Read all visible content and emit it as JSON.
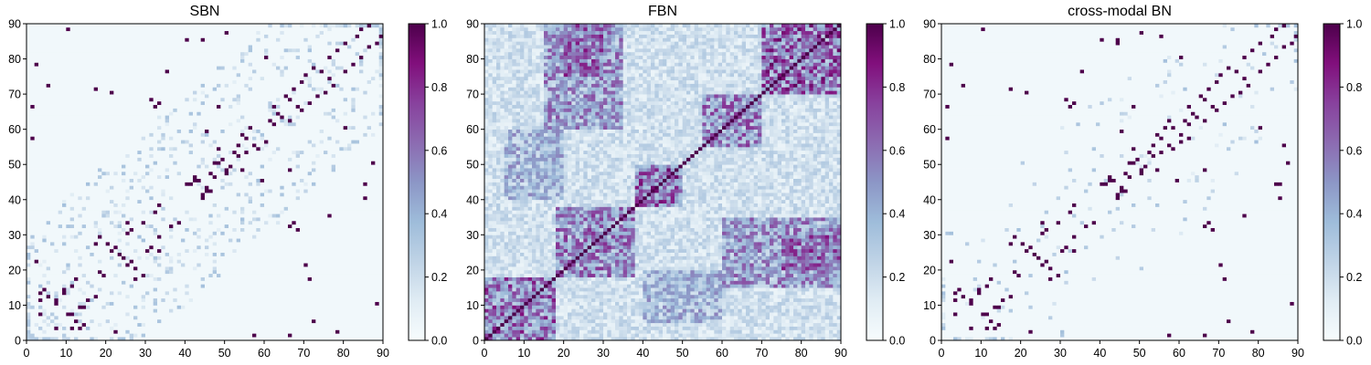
{
  "chart_data": [
    {
      "type": "heatmap",
      "title": "SBN",
      "size": 90,
      "xlim": [
        0,
        90
      ],
      "ylim": [
        0,
        90
      ],
      "xticks": [
        0,
        10,
        20,
        30,
        40,
        50,
        60,
        70,
        80,
        90
      ],
      "yticks": [
        0,
        10,
        20,
        30,
        40,
        50,
        60,
        70,
        80,
        90
      ],
      "colorbar": {
        "min": 0.0,
        "max": 1.0,
        "ticks": [
          "0.0",
          "0.2",
          "0.4",
          "0.6",
          "0.8",
          "1.0"
        ]
      },
      "colormap": "BuPu",
      "strong_edges": [
        [
          57,
          1
        ],
        [
          7,
          10
        ],
        [
          11,
          7
        ],
        [
          5,
          12
        ],
        [
          4,
          14
        ],
        [
          3,
          11
        ],
        [
          9,
          14
        ],
        [
          13,
          3
        ],
        [
          15,
          11
        ],
        [
          12,
          17
        ],
        [
          19,
          18
        ],
        [
          22,
          2
        ],
        [
          24,
          23
        ],
        [
          25,
          21
        ],
        [
          26,
          22
        ],
        [
          27,
          17
        ],
        [
          29,
          18
        ],
        [
          30,
          25
        ],
        [
          31,
          26
        ],
        [
          33,
          29
        ],
        [
          36,
          32
        ],
        [
          38,
          33
        ],
        [
          40,
          44
        ],
        [
          42,
          45
        ],
        [
          44,
          41
        ],
        [
          45,
          43
        ],
        [
          46,
          42
        ],
        [
          47,
          46
        ],
        [
          48,
          50
        ],
        [
          49,
          51
        ],
        [
          50,
          47
        ],
        [
          53,
          52
        ],
        [
          54,
          48
        ],
        [
          55,
          53
        ],
        [
          57,
          55
        ],
        [
          58,
          54
        ],
        [
          60,
          56
        ],
        [
          62,
          61
        ],
        [
          64,
          63
        ],
        [
          66,
          62
        ],
        [
          68,
          66
        ],
        [
          69,
          65
        ],
        [
          71,
          67
        ],
        [
          73,
          69
        ],
        [
          75,
          70
        ],
        [
          76,
          74
        ],
        [
          77,
          72
        ],
        [
          80,
          76
        ],
        [
          82,
          78
        ],
        [
          84,
          80
        ],
        [
          86,
          83
        ],
        [
          88,
          84
        ],
        [
          89,
          86
        ],
        [
          1,
          66
        ],
        [
          5,
          72
        ],
        [
          2,
          78
        ],
        [
          27,
          20
        ],
        [
          33,
          25
        ],
        [
          17,
          71
        ],
        [
          21,
          70
        ],
        [
          48,
          66
        ],
        [
          45,
          59
        ],
        [
          66,
          32
        ],
        [
          80,
          60
        ],
        [
          87,
          50
        ],
        [
          85,
          40
        ],
        [
          3,
          7
        ],
        [
          9,
          13
        ],
        [
          67,
          33
        ],
        [
          68,
          31
        ],
        [
          35,
          76
        ],
        [
          10,
          88
        ],
        [
          44,
          85
        ]
      ],
      "weak_edges_per_row": 4,
      "base_value": 0.03
    },
    {
      "type": "heatmap",
      "title": "FBN",
      "size": 90,
      "xlim": [
        0,
        90
      ],
      "ylim": [
        0,
        90
      ],
      "xticks": [
        0,
        10,
        20,
        30,
        40,
        50,
        60,
        70,
        80,
        90
      ],
      "yticks": [
        0,
        10,
        20,
        30,
        40,
        50,
        60,
        70,
        80,
        90
      ],
      "colorbar": {
        "min": 0.0,
        "max": 1.0,
        "ticks": [
          "0.0",
          "0.2",
          "0.4",
          "0.6",
          "0.8",
          "1.0"
        ]
      },
      "colormap": "BuPu",
      "dense_blocks": [
        [
          0,
          18,
          0,
          18,
          0.55
        ],
        [
          18,
          38,
          18,
          38,
          0.5
        ],
        [
          38,
          50,
          38,
          50,
          0.6
        ],
        [
          55,
          70,
          55,
          70,
          0.5
        ],
        [
          70,
          90,
          70,
          90,
          0.6
        ],
        [
          15,
          35,
          60,
          90,
          0.45
        ],
        [
          60,
          90,
          15,
          35,
          0.45
        ],
        [
          5,
          20,
          40,
          60,
          0.35
        ],
        [
          40,
          60,
          5,
          20,
          0.35
        ],
        [
          75,
          90,
          20,
          30,
          0.55
        ],
        [
          20,
          30,
          75,
          90,
          0.55
        ]
      ],
      "diagonal_value": 1.0,
      "base_value": 0.2
    },
    {
      "type": "heatmap",
      "title": "cross-modal BN",
      "size": 90,
      "xlim": [
        0,
        90
      ],
      "ylim": [
        0,
        90
      ],
      "xticks": [
        0,
        10,
        20,
        30,
        40,
        50,
        60,
        70,
        80,
        90
      ],
      "yticks": [
        0,
        10,
        20,
        30,
        40,
        50,
        60,
        70,
        80,
        90
      ],
      "colorbar": {
        "min": 0.0,
        "max": 1.0,
        "ticks": [
          "0.0",
          "0.2",
          "0.4",
          "0.6",
          "0.8",
          "1.0"
        ]
      },
      "colormap": "BuPu",
      "strong_edges": [
        [
          57,
          1
        ],
        [
          7,
          10
        ],
        [
          11,
          7
        ],
        [
          5,
          12
        ],
        [
          4,
          14
        ],
        [
          3,
          11
        ],
        [
          9,
          14
        ],
        [
          13,
          3
        ],
        [
          15,
          11
        ],
        [
          12,
          17
        ],
        [
          19,
          18
        ],
        [
          22,
          2
        ],
        [
          24,
          23
        ],
        [
          25,
          21
        ],
        [
          26,
          22
        ],
        [
          27,
          17
        ],
        [
          29,
          18
        ],
        [
          30,
          25
        ],
        [
          31,
          26
        ],
        [
          33,
          29
        ],
        [
          36,
          32
        ],
        [
          38,
          33
        ],
        [
          40,
          44
        ],
        [
          42,
          45
        ],
        [
          44,
          41
        ],
        [
          45,
          43
        ],
        [
          46,
          42
        ],
        [
          47,
          46
        ],
        [
          48,
          50
        ],
        [
          49,
          51
        ],
        [
          50,
          47
        ],
        [
          53,
          52
        ],
        [
          54,
          48
        ],
        [
          55,
          53
        ],
        [
          57,
          55
        ],
        [
          58,
          54
        ],
        [
          60,
          56
        ],
        [
          62,
          61
        ],
        [
          64,
          63
        ],
        [
          66,
          62
        ],
        [
          68,
          66
        ],
        [
          69,
          65
        ],
        [
          71,
          67
        ],
        [
          73,
          69
        ],
        [
          75,
          70
        ],
        [
          76,
          74
        ],
        [
          77,
          72
        ],
        [
          80,
          76
        ],
        [
          82,
          78
        ],
        [
          84,
          80
        ],
        [
          86,
          83
        ],
        [
          88,
          84
        ],
        [
          89,
          86
        ],
        [
          1,
          66
        ],
        [
          5,
          72
        ],
        [
          2,
          78
        ],
        [
          27,
          20
        ],
        [
          33,
          25
        ],
        [
          17,
          71
        ],
        [
          21,
          70
        ],
        [
          48,
          66
        ],
        [
          45,
          59
        ],
        [
          66,
          32
        ],
        [
          80,
          60
        ],
        [
          87,
          50
        ],
        [
          85,
          40
        ],
        [
          3,
          7
        ],
        [
          9,
          13
        ],
        [
          67,
          33
        ],
        [
          68,
          31
        ],
        [
          35,
          76
        ],
        [
          10,
          88
        ],
        [
          44,
          85
        ],
        [
          60,
          58
        ],
        [
          62,
          57
        ],
        [
          86,
          55
        ],
        [
          84,
          44
        ]
      ],
      "weak_edges_per_row": 1,
      "base_value": 0.03
    }
  ]
}
